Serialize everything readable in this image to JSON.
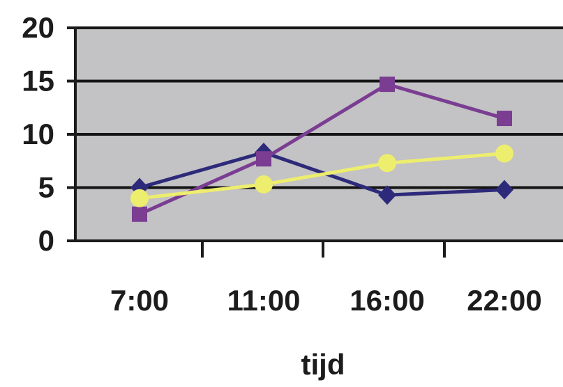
{
  "chart_data": {
    "type": "line",
    "categories": [
      "7:00",
      "11:00",
      "16:00",
      "22:00"
    ],
    "xlabel": "tijd",
    "ylabel": "",
    "ylim": [
      0,
      20
    ],
    "yticks": [
      0,
      5,
      10,
      15,
      20
    ],
    "grid": true,
    "plot_background": "#c3c2c4",
    "series": [
      {
        "color": "#2e2a7a",
        "marker": "diamond",
        "values": [
          5,
          8.3,
          4.3,
          4.8
        ]
      },
      {
        "color": "#7a3d92",
        "marker": "square",
        "values": [
          2.5,
          7.7,
          14.7,
          11.5
        ]
      },
      {
        "color": "#eded6e",
        "marker": "circle",
        "values": [
          4,
          5.3,
          7.3,
          8.2
        ]
      }
    ]
  }
}
